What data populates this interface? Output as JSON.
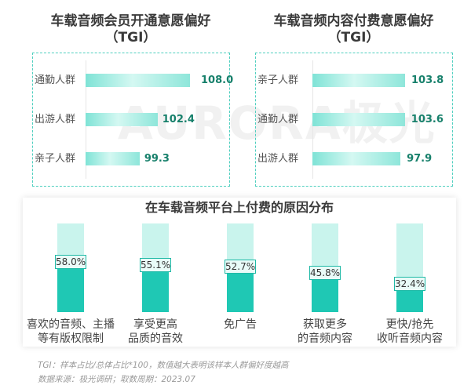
{
  "watermark": "AURORA极光",
  "colors": {
    "accent": "#1fc8b4",
    "light": "#c9f4ed",
    "value_text": "#17806b",
    "border": "#4fcfbf"
  },
  "chart_data": [
    {
      "type": "bar",
      "orientation": "horizontal",
      "title": "车载音频会员开通意愿偏好",
      "subtitle": "（TGI）",
      "categories": [
        "通勤人群",
        "出游人群",
        "亲子人群"
      ],
      "values": [
        108.0,
        102.4,
        99.3
      ],
      "labels": [
        "108.0",
        "102.4",
        "99.3"
      ]
    },
    {
      "type": "bar",
      "orientation": "horizontal",
      "title": "车载音频内容付费意愿偏好",
      "subtitle": "（TGI）",
      "categories": [
        "亲子人群",
        "通勤人群",
        "出游人群"
      ],
      "values": [
        103.8,
        103.6,
        97.9
      ],
      "labels": [
        "103.8",
        "103.6",
        "97.9"
      ]
    },
    {
      "type": "bar",
      "orientation": "vertical",
      "title": "在车载音频平台上付费的原因分布",
      "categories": [
        [
          "喜欢的音频、主播",
          "等有版权限制"
        ],
        [
          "享受更高",
          "品质的音效"
        ],
        [
          "免广告",
          ""
        ],
        [
          "获取更多",
          "的音频内容"
        ],
        [
          "更快/抢先",
          "收听音频内容"
        ]
      ],
      "values": [
        58.0,
        55.1,
        52.7,
        45.8,
        32.4
      ],
      "labels": [
        "58.0%",
        "55.1%",
        "52.7%",
        "45.8%",
        "32.4%"
      ],
      "ylim": [
        0,
        100
      ]
    }
  ],
  "footnotes": [
    "TGI：样本占比/总体占比*100，数值越大表明该样本人群偏好度越高",
    "数据来源：极光调研；取数周期：2023.07"
  ]
}
